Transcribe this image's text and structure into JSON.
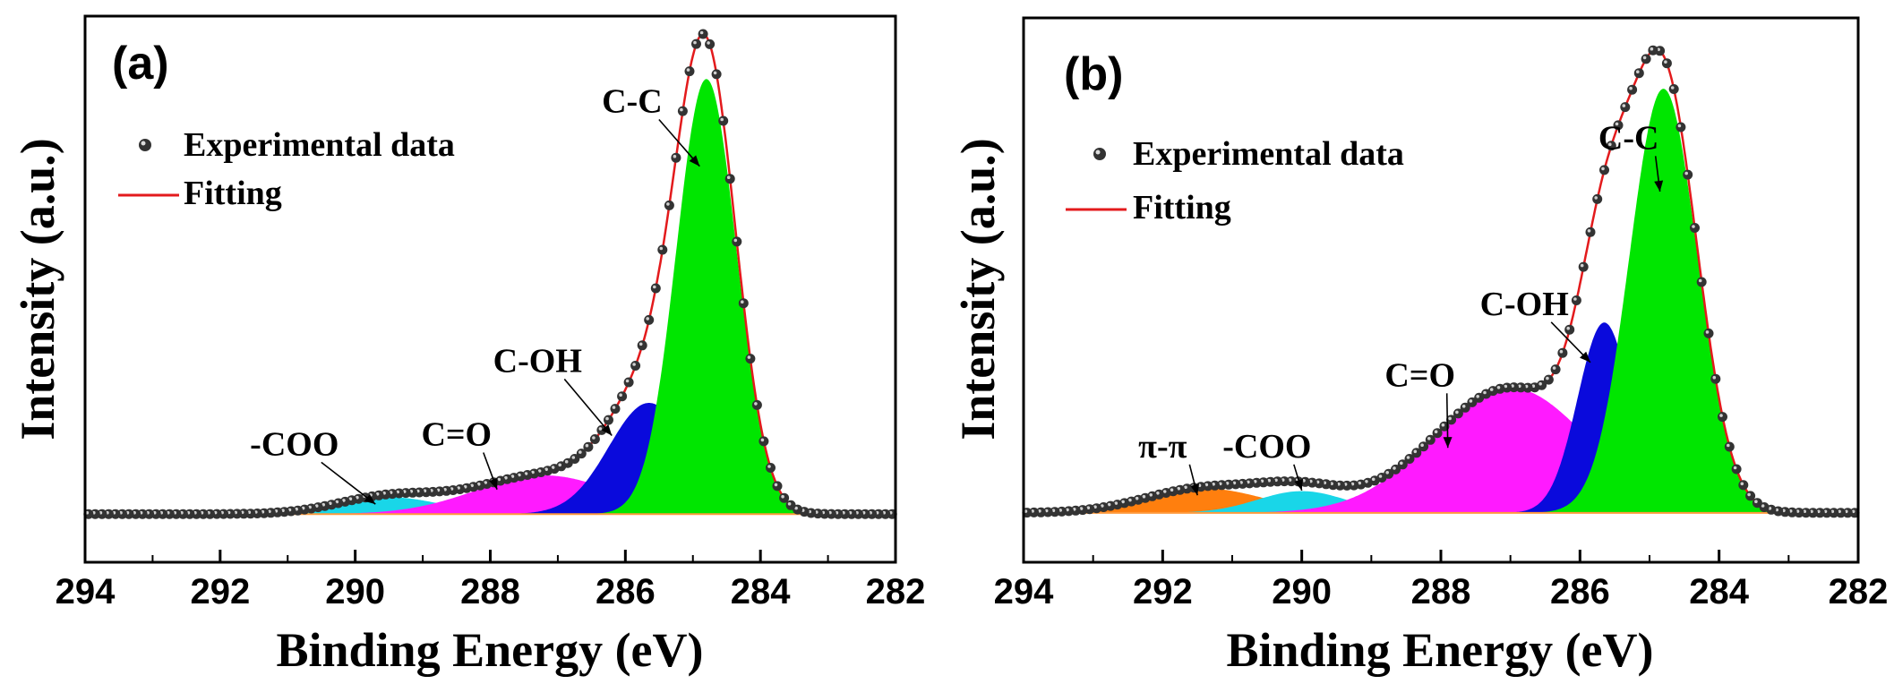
{
  "colors": {
    "fit": "#e31a1c",
    "points": "#333333",
    "frame": "#000000"
  },
  "chart_data": [
    {
      "type": "area",
      "panel": "(a)",
      "xlabel": "Binding Energy (eV)",
      "ylabel": "Intensity (a.u.)",
      "xlim": [
        294,
        282
      ],
      "x_reversed": true,
      "xticks": [
        "294",
        "292",
        "290",
        "288",
        "286",
        "284",
        "282"
      ],
      "x_range_data": [
        294,
        282
      ],
      "baseline": 0.02,
      "legend": {
        "placement": "top-left",
        "entries": [
          {
            "label": "Experimental data",
            "marker": "dot"
          },
          {
            "label": "Fitting",
            "marker": "red-line"
          }
        ]
      },
      "components": [
        {
          "name": "-COO",
          "center": 289.5,
          "amplitude": 0.035,
          "fwhm": 1.8,
          "color": "#19d6e8"
        },
        {
          "name": "C=O",
          "center": 287.2,
          "amplitude": 0.08,
          "fwhm": 2.4,
          "color": "#ff1aff"
        },
        {
          "name": "C-OH",
          "center": 285.65,
          "amplitude": 0.23,
          "fwhm": 1.4,
          "color": "#0a0adc"
        },
        {
          "name": "C-C",
          "center": 284.8,
          "amplitude": 0.9,
          "fwhm": 1.05,
          "color": "#00e600"
        }
      ],
      "annotations": [
        {
          "text": "C-C",
          "x": 285.9,
          "y": 0.84,
          "arrow_to": [
            284.9,
            0.73
          ]
        },
        {
          "text": "C-OH",
          "x": 287.3,
          "y": 0.31,
          "arrow_to": [
            286.2,
            0.18
          ]
        },
        {
          "text": "C=O",
          "x": 288.5,
          "y": 0.16,
          "arrow_to": [
            287.9,
            0.07
          ]
        },
        {
          "text": "-COO",
          "x": 290.9,
          "y": 0.14,
          "arrow_to": [
            289.7,
            0.04
          ]
        }
      ]
    },
    {
      "type": "area",
      "panel": "(b)",
      "xlabel": "Binding Energy (eV)",
      "ylabel": "Intensity (a.u.)",
      "xlim": [
        294,
        282
      ],
      "x_reversed": true,
      "xticks": [
        "294",
        "292",
        "290",
        "288",
        "286",
        "284",
        "282"
      ],
      "x_range_data": [
        294,
        282
      ],
      "baseline": 0.02,
      "legend": {
        "placement": "top-left",
        "entries": [
          {
            "label": "Experimental data",
            "marker": "dot"
          },
          {
            "label": "Fitting",
            "marker": "red-line"
          }
        ]
      },
      "components": [
        {
          "name": "π-π",
          "center": 291.4,
          "amplitude": 0.045,
          "fwhm": 2.0,
          "color": "#ff7f0e"
        },
        {
          "name": "-COO",
          "center": 290.0,
          "amplitude": 0.04,
          "fwhm": 1.5,
          "color": "#19d6e8"
        },
        {
          "name": "C=O",
          "center": 287.0,
          "amplitude": 0.23,
          "fwhm": 2.6,
          "color": "#ff1aff"
        },
        {
          "name": "C-OH",
          "center": 285.65,
          "amplitude": 0.35,
          "fwhm": 0.9,
          "color": "#0a0adc"
        },
        {
          "name": "C-C",
          "center": 284.8,
          "amplitude": 0.78,
          "fwhm": 1.15,
          "color": "#00e600"
        }
      ],
      "annotations": [
        {
          "text": "C-C",
          "x": 285.3,
          "y": 0.79,
          "arrow_to": [
            284.85,
            0.7
          ]
        },
        {
          "text": "C-OH",
          "x": 286.8,
          "y": 0.44,
          "arrow_to": [
            285.85,
            0.34
          ]
        },
        {
          "text": "C=O",
          "x": 288.3,
          "y": 0.29,
          "arrow_to": [
            287.9,
            0.16
          ]
        },
        {
          "text": "-COO",
          "x": 290.5,
          "y": 0.14,
          "arrow_to": [
            290.0,
            0.07
          ]
        },
        {
          "text": "π-π",
          "x": 292.0,
          "y": 0.14,
          "arrow_to": [
            291.5,
            0.06
          ]
        }
      ]
    }
  ]
}
